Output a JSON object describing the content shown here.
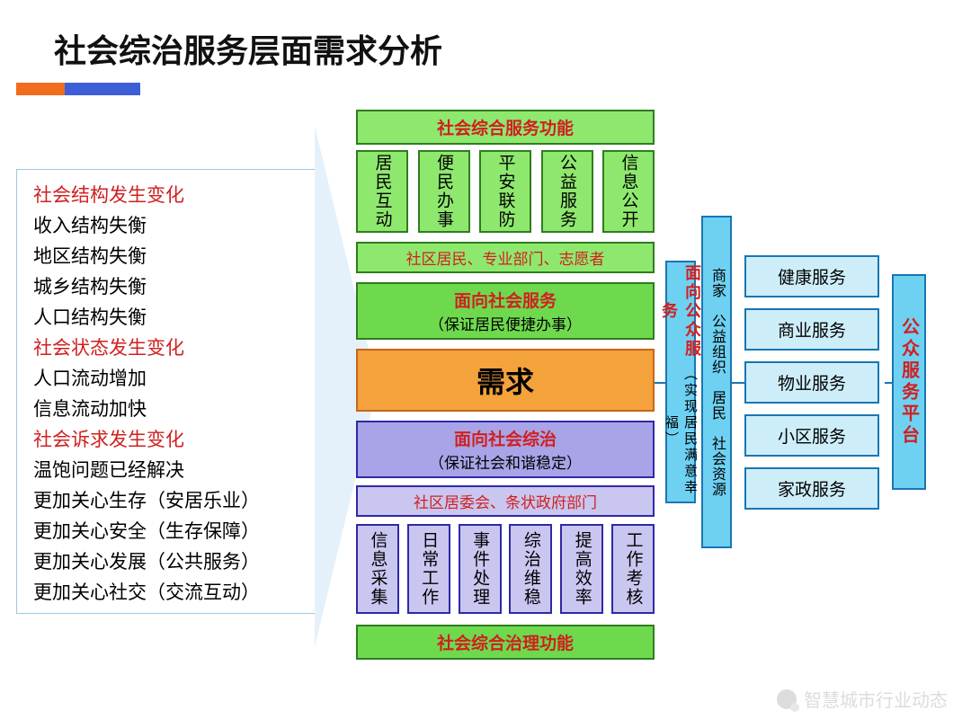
{
  "title": "社会综治服务层面需求分析",
  "accent": {
    "color1": "#f26c1e",
    "color2": "#3c5fd8"
  },
  "left_list": [
    {
      "text": "社会结构发生变化",
      "red": true
    },
    {
      "text": "收入结构失衡",
      "red": false
    },
    {
      "text": "地区结构失衡",
      "red": false
    },
    {
      "text": "城乡结构失衡",
      "red": false
    },
    {
      "text": "人口结构失衡",
      "red": false
    },
    {
      "text": "社会状态发生变化",
      "red": true
    },
    {
      "text": "人口流动增加",
      "red": false
    },
    {
      "text": "信息流动加快",
      "red": false
    },
    {
      "text": "社会诉求发生变化",
      "red": true
    },
    {
      "text": "温饱问题已经解决",
      "red": false
    },
    {
      "text": "更加关心生存（安居乐业）",
      "red": false
    },
    {
      "text": "更加关心安全（生存保障）",
      "red": false
    },
    {
      "text": "更加关心发展（公共服务）",
      "red": false
    },
    {
      "text": "更加关心社交（交流互动）",
      "red": false
    }
  ],
  "center": {
    "top_header": "社会综合服务功能",
    "green_items": [
      "居民互动",
      "便民办事",
      "平安联防",
      "公益服务",
      "信息公开"
    ],
    "green_strip": "社区居民、专业部门、志愿者",
    "svc_social": {
      "t1": "面向社会服务",
      "t2": "（保证居民便捷办事）"
    },
    "demand": "需求",
    "gov_box": {
      "t1": "面向社会综治",
      "t2": "（保证社会和谐稳定）"
    },
    "purple_strip": "社区居委会、条状政府部门",
    "purple_items": [
      "信息采集",
      "日常工作",
      "事件处理",
      "综治维稳",
      "提高效率",
      "工作考核"
    ],
    "bottom_header": "社会综合治理功能"
  },
  "right": {
    "v1_main": "面向公众服务",
    "v1_sub": "（实现居民满意幸福）",
    "v2": "商家　公益组织　居民　社会资源",
    "services": [
      "健康服务",
      "商业服务",
      "物业服务",
      "小区服务",
      "家政服务"
    ],
    "platform": "公众服务平台"
  },
  "watermark": "智慧城市行业动态",
  "colors": {
    "green_border": "#2e7d1f",
    "green_fill": "#8fe86e",
    "green_dark": "#6fd94e",
    "purple_border": "#3028a8",
    "purple_fill": "#a9a4e8",
    "purple_light": "#c9c6f0",
    "orange_border": "#c7651a",
    "orange_fill": "#f4a23b",
    "cyan_border": "#1976b3",
    "cyan_fill": "#6fd1f2",
    "cyan_light": "#cdeef9",
    "red_text": "#d02020"
  }
}
